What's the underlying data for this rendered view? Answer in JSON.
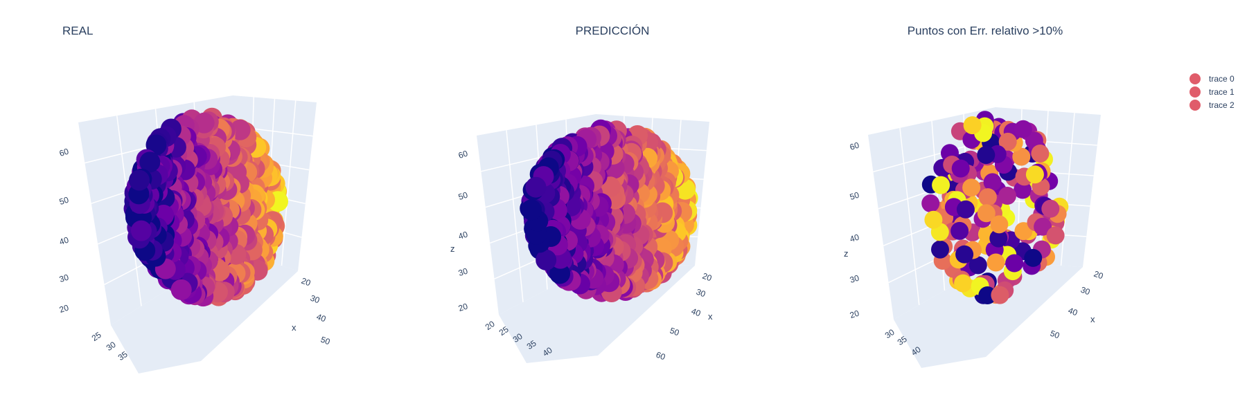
{
  "chart_data": [
    {
      "type": "scatter3d",
      "title": "REAL",
      "axes": {
        "x": {
          "label": "x",
          "ticks": [
            "20",
            "30",
            "40",
            "50"
          ]
        },
        "y": {
          "label": "",
          "ticks": [
            "25",
            "30",
            "35"
          ]
        },
        "z": {
          "label": "",
          "ticks": [
            "20",
            "30",
            "40",
            "50",
            "60"
          ]
        }
      },
      "marker_color": "plasma",
      "legend_name": "trace 0"
    },
    {
      "type": "scatter3d",
      "title": "PREDICCIÓN",
      "axes": {
        "x": {
          "label": "x",
          "ticks": [
            "20",
            "30",
            "40",
            "50",
            "60"
          ]
        },
        "y": {
          "label": "",
          "ticks": [
            "20",
            "25",
            "30",
            "35",
            "40"
          ]
        },
        "z": {
          "label": "z",
          "ticks": [
            "20",
            "30",
            "40",
            "50",
            "60"
          ]
        }
      },
      "marker_color": "plasma",
      "legend_name": "trace 1"
    },
    {
      "type": "scatter3d",
      "title": "Puntos con Err. relativo >10%",
      "axes": {
        "x": {
          "label": "x",
          "ticks": [
            "20",
            "30",
            "40",
            "50"
          ]
        },
        "y": {
          "label": "",
          "ticks": [
            "30",
            "35",
            "40"
          ]
        },
        "z": {
          "label": "z",
          "ticks": [
            "20",
            "30",
            "40",
            "50",
            "60"
          ]
        }
      },
      "marker_color": "plasma",
      "legend_name": "trace 2"
    }
  ],
  "legend": {
    "placement": "top-right",
    "entries": [
      "trace 0",
      "trace 1",
      "trace 2"
    ],
    "marker_color": "#e05c6a"
  },
  "colors": {
    "scene_bg": "#e5ecf6",
    "grid": "#ffffff",
    "text": "#2a3f5f",
    "colorscale": [
      "#0d0887",
      "#46039f",
      "#7201a8",
      "#9c179e",
      "#bd3786",
      "#d8576b",
      "#ed7953",
      "#fb9f3a",
      "#fdca26",
      "#f0f921"
    ]
  }
}
